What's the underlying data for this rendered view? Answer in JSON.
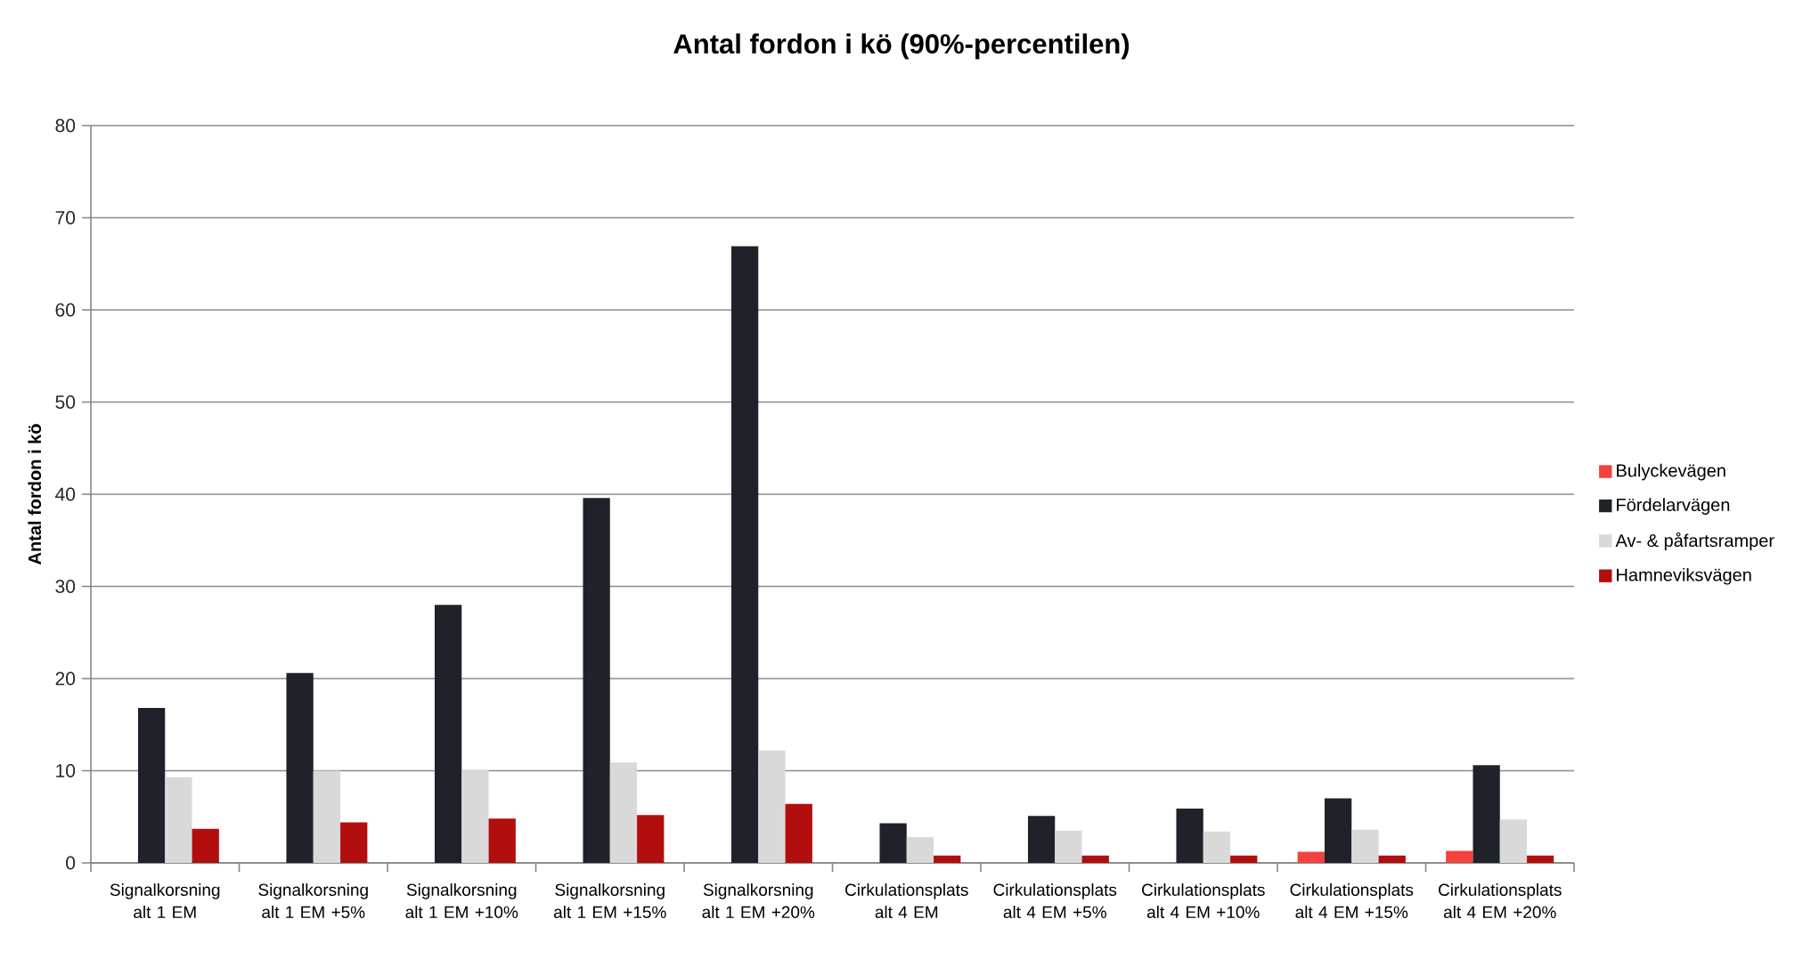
{
  "chart_data": {
    "type": "bar",
    "title": "Antal fordon i kö (90%-percentilen)",
    "ylabel": "Antal fordon i kö",
    "categories": [
      "Signalkorsning alt 1 EM",
      "Signalkorsning alt 1 EM +5%",
      "Signalkorsning alt 1 EM +10%",
      "Signalkorsning alt 1 EM +15%",
      "Signalkorsning alt 1 EM +20%",
      "Cirkulationsplats alt 4 EM",
      "Cirkulationsplats alt 4 EM +5%",
      "Cirkulationsplats alt 4 EM +10%",
      "Cirkulationsplats alt 4 EM +15%",
      "Cirkulationsplats alt 4 EM +20%"
    ],
    "series": [
      {
        "name": "Bulyckevägen",
        "color": "#f5413d",
        "values": [
          null,
          null,
          null,
          null,
          null,
          null,
          null,
          null,
          1.2,
          1.3
        ]
      },
      {
        "name": "Fördelarvägen",
        "color": "#1f2329",
        "values": [
          16.8,
          20.6,
          28.0,
          39.6,
          66.9,
          4.3,
          5.1,
          5.9,
          7.0,
          10.6
        ]
      },
      {
        "name": "Av- & påfartsramper",
        "color": "#d9d9d9",
        "values": [
          9.3,
          10.0,
          10.1,
          10.9,
          12.2,
          2.8,
          3.5,
          3.4,
          3.6,
          4.7
        ]
      },
      {
        "name": "Hamneviksvägen",
        "color": "#b20e0e",
        "values": [
          3.7,
          4.4,
          4.8,
          5.2,
          6.4,
          0.8,
          0.8,
          0.8,
          0.8,
          0.8
        ]
      }
    ],
    "ylim": [
      0,
      80
    ],
    "yticks": [
      0,
      10,
      20,
      30,
      40,
      50,
      60,
      70,
      80
    ],
    "grid": "y",
    "legend": "right"
  }
}
